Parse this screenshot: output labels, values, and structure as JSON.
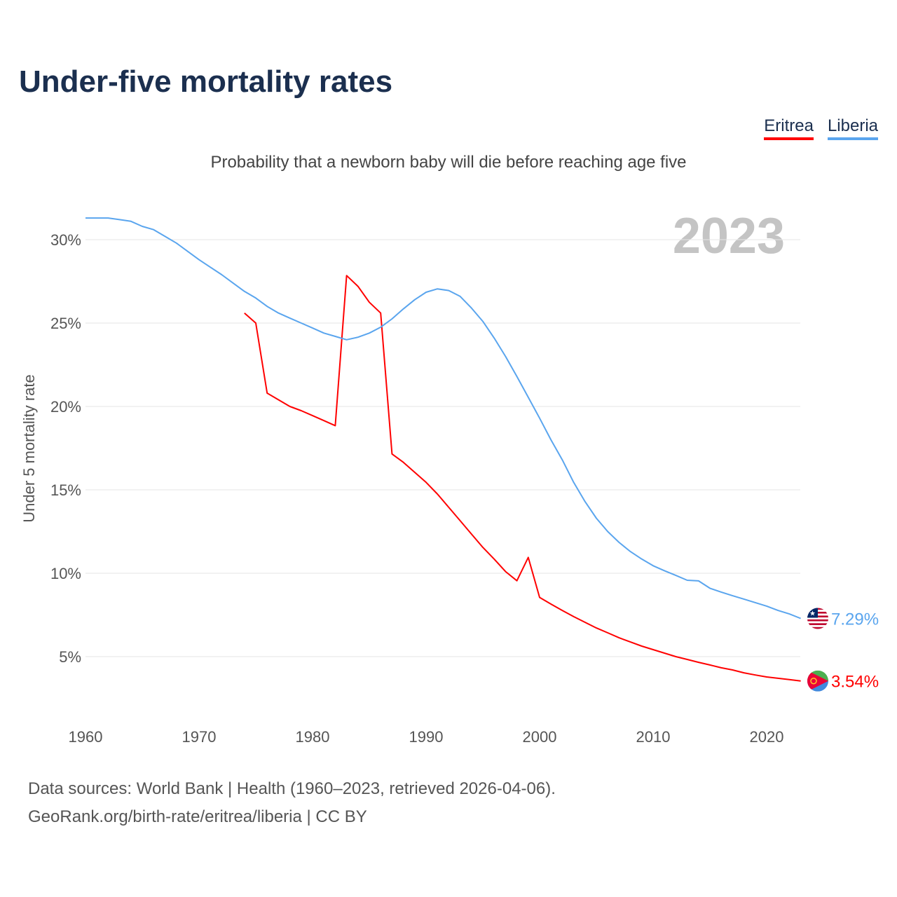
{
  "chart_data": {
    "type": "line",
    "title": "Under-five mortality rates",
    "subtitle": "Probability that a newborn baby will die before reaching age five",
    "ylabel": "Under 5 mortality rate",
    "xlabel": "",
    "year_label": "2023",
    "xlim": [
      1960,
      2023
    ],
    "ylim": [
      0,
      32
    ],
    "xticks": [
      "1960",
      "1970",
      "1980",
      "1990",
      "2000",
      "2010",
      "2020"
    ],
    "yticks": [
      {
        "v": 5,
        "label": "5%"
      },
      {
        "v": 10,
        "label": "10%"
      },
      {
        "v": 15,
        "label": "15%"
      },
      {
        "v": 20,
        "label": "20%"
      },
      {
        "v": 25,
        "label": "25%"
      },
      {
        "v": 30,
        "label": "30%"
      }
    ],
    "grid": true,
    "legend_position": "top-right",
    "series": [
      {
        "name": "Eritrea",
        "color": "#ff0000",
        "end_label": "3.54%",
        "start_year": 1974,
        "values": [
          25.6,
          25.0,
          20.8,
          20.4,
          20.0,
          19.75,
          19.45,
          19.15,
          18.85,
          27.85,
          27.2,
          26.25,
          25.6,
          17.15,
          16.65,
          16.05,
          15.45,
          14.75,
          13.95,
          13.15,
          12.35,
          11.55,
          10.85,
          10.1,
          9.55,
          10.95,
          8.55,
          8.15,
          7.77,
          7.4,
          7.06,
          6.72,
          6.43,
          6.13,
          5.88,
          5.63,
          5.42,
          5.21,
          5.0,
          4.83,
          4.66,
          4.5,
          4.33,
          4.2,
          4.03,
          3.9,
          3.78,
          3.7,
          3.62,
          3.54
        ]
      },
      {
        "name": "Liberia",
        "color": "#5aa5ee",
        "end_label": "7.29%",
        "start_year": 1960,
        "values": [
          31.3,
          31.3,
          31.3,
          31.2,
          31.1,
          30.8,
          30.6,
          30.2,
          29.8,
          29.3,
          28.8,
          28.35,
          27.9,
          27.4,
          26.9,
          26.5,
          26.0,
          25.6,
          25.3,
          25.0,
          24.7,
          24.4,
          24.2,
          24.0,
          24.15,
          24.4,
          24.75,
          25.25,
          25.85,
          26.4,
          26.85,
          27.05,
          26.95,
          26.6,
          25.9,
          25.1,
          24.1,
          23.0,
          21.8,
          20.55,
          19.3,
          18.0,
          16.8,
          15.45,
          14.3,
          13.3,
          12.5,
          11.85,
          11.3,
          10.85,
          10.45,
          10.15,
          9.87,
          9.58,
          9.54,
          9.1,
          8.87,
          8.65,
          8.45,
          8.24,
          8.03,
          7.77,
          7.56,
          7.29
        ]
      }
    ]
  },
  "footer": {
    "line1": "Data sources: World Bank | Health (1960–2023, retrieved 2026-04-06).",
    "line2": "GeoRank.org/birth-rate/eritrea/liberia | CC BY"
  }
}
